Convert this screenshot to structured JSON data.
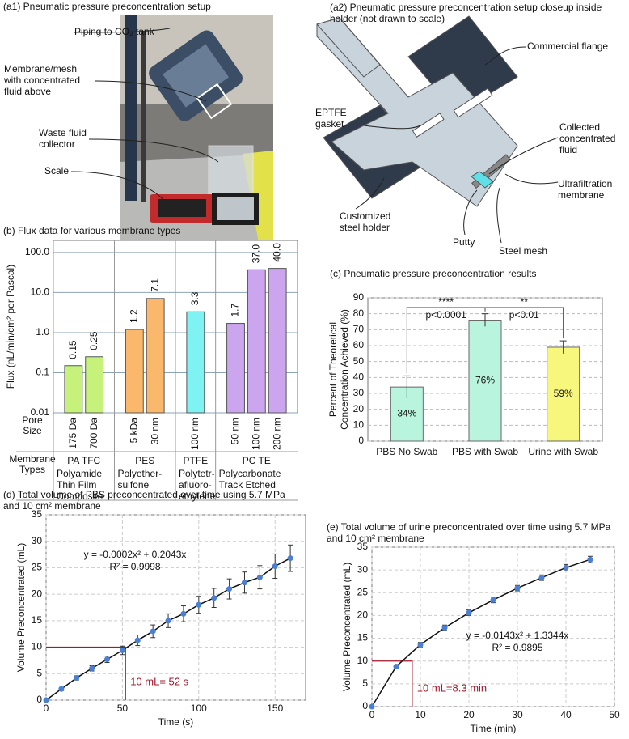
{
  "panels": {
    "a1": {
      "title": "(a1) Pneumatic pressure preconcentration setup",
      "labels": [
        "Piping to CO₂ tank",
        [
          "Membrane/mesh",
          "with concentrated",
          "fluid above"
        ],
        [
          "Waste fluid",
          "collector"
        ],
        "Scale"
      ]
    },
    "a2": {
      "title": [
        "(a2)  Pneumatic pressure preconcentration setup closeup inside",
        "holder (not drawn to scale)"
      ],
      "labels": [
        "Commercial flange",
        [
          "EPTFE",
          "gasket"
        ],
        [
          "Collected",
          "concentrated",
          "fluid"
        ],
        [
          "Ultrafiltration",
          "membrane"
        ],
        [
          "Customized",
          "steel holder"
        ],
        "Putty",
        "Steel mesh"
      ]
    }
  },
  "chart_data": [
    {
      "type": "bar",
      "title": "(b) Flux data for various membrane types",
      "ylabel": "Flux (nL/min/cm² per Pascal)",
      "log": true,
      "grid": true,
      "ylim": [
        0.01,
        200
      ],
      "yticks": [
        0.01,
        0.1,
        {
          "value": 1,
          "label": "1.0"
        },
        {
          "value": 10,
          "label": "10.0"
        },
        {
          "value": 100,
          "label": "100.0"
        }
      ],
      "row_labels": [
        [
          "Pore",
          "Size"
        ],
        [
          "Membrane",
          "Types"
        ]
      ],
      "groups": [
        {
          "abbr": "PA TFC",
          "name": [
            "Polyamide",
            "Thin Film",
            "Composite"
          ],
          "color": "#c6f27c",
          "categories": [
            "175 Da",
            "700 Da"
          ],
          "values": [
            0.15,
            0.25
          ],
          "value_labels": [
            "0.15",
            "0.25"
          ]
        },
        {
          "abbr": "PES",
          "name": [
            "Polyether-",
            "sulfone"
          ],
          "color": "#f9b86c",
          "categories": [
            "5 kDa",
            "30 nm"
          ],
          "values": [
            1.2,
            7.1
          ],
          "value_labels": [
            "1.2",
            "7.1"
          ]
        },
        {
          "abbr": "PTFE",
          "name": [
            "Polytetr-",
            "afluoro-",
            "ethylene"
          ],
          "color": "#7ff2f4",
          "categories": [
            "100 nm"
          ],
          "values": [
            3.3
          ],
          "value_labels": [
            "3.3"
          ]
        },
        {
          "abbr": "PC TE",
          "name": [
            "Polycarbonate",
            "Track Etched"
          ],
          "color": "#cba6ef",
          "categories": [
            "50 nm",
            "100 nm",
            "200 nm"
          ],
          "values": [
            1.7,
            37.0,
            40.0
          ],
          "value_labels": [
            "1.7",
            "37.0",
            "40.0"
          ]
        }
      ]
    },
    {
      "type": "bar",
      "title": "(c) Pneumatic pressure preconcentration results",
      "ylabel": [
        "Percent of Theoretical",
        "Concentration Achieved (%)"
      ],
      "grid": true,
      "ylim": [
        0,
        90
      ],
      "yticks": [
        0,
        10,
        20,
        30,
        40,
        50,
        60,
        70,
        80,
        90
      ],
      "categories": [
        "PBS No Swab",
        "PBS with Swab",
        "Urine with Swab"
      ],
      "values": [
        34,
        76,
        59
      ],
      "value_labels": [
        "34%",
        "76%",
        "59%"
      ],
      "errors": [
        7,
        4,
        4
      ],
      "colors": [
        "#b9f5de",
        "#b9f5de",
        "#f7f77e"
      ],
      "annotations": [
        "****",
        "p<0.0001",
        "**",
        "p<0.01"
      ]
    },
    {
      "type": "scatter",
      "title": [
        "(d) Total volume of PBS preconcentrated over time using 5.7 MPa",
        "and 10 cm² membrane"
      ],
      "xlabel": "Time (s)",
      "ylabel": "Volume Preconcentrated (mL)",
      "grid": true,
      "color": "#4a7fd4",
      "x": [
        0,
        10,
        20,
        30,
        40,
        50,
        60,
        70,
        80,
        90,
        100,
        110,
        120,
        130,
        140,
        150,
        160
      ],
      "values": [
        0,
        2.1,
        4.2,
        6,
        7.7,
        9.4,
        11.3,
        13,
        15,
        16.3,
        18,
        19.3,
        21,
        22.2,
        23.2,
        25.3,
        26.8
      ],
      "errors": [
        0,
        0.3,
        0.4,
        0.5,
        0.6,
        0.8,
        1,
        1.2,
        1.3,
        1.5,
        1.6,
        1.8,
        1.9,
        2,
        2.2,
        2.3,
        2.5
      ],
      "xlim": [
        0,
        170
      ],
      "xticks": [
        0,
        50,
        100,
        150
      ],
      "ylim": [
        0,
        35
      ],
      "yticks": [
        0,
        5,
        10,
        15,
        20,
        25,
        30,
        35
      ],
      "equation": [
        "y = -0.0002x² + 0.2043x",
        "R² = 0.9998"
      ],
      "reference_x": 52,
      "reference_y": 10,
      "reference_label": "10 mL= 52 s"
    },
    {
      "type": "scatter",
      "title": [
        "(e) Total volume of urine preconcentrated over time using 5.7 MPa",
        "and 10 cm² membrane"
      ],
      "xlabel": "Time (min)",
      "ylabel": "Volume Preconcentrated (mL)",
      "grid": true,
      "color": "#4a7fd4",
      "x": [
        0,
        5,
        10,
        15,
        20,
        25,
        30,
        35,
        40,
        45
      ],
      "values": [
        0,
        8.8,
        13.6,
        17.3,
        20.6,
        23.4,
        26,
        28.3,
        30.5,
        32.3
      ],
      "errors": [
        0,
        0.3,
        0.5,
        0.6,
        0.6,
        0.6,
        0.6,
        0.6,
        0.7,
        0.7
      ],
      "xlim": [
        0,
        50
      ],
      "xticks": [
        0,
        10,
        20,
        30,
        40,
        50
      ],
      "ylim": [
        0,
        35
      ],
      "yticks": [
        0,
        5,
        10,
        15,
        20,
        25,
        30,
        35
      ],
      "equation": [
        "y = -0.0143x² + 1.3344x",
        "R² = 0.9895"
      ],
      "reference_x": 8.3,
      "reference_y": 10,
      "reference_label": "10 mL=8.3 min"
    }
  ]
}
